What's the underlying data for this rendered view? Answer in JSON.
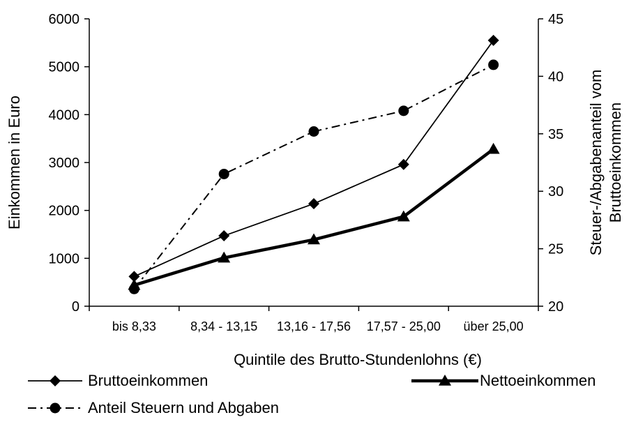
{
  "chart_data": {
    "type": "line",
    "title": "",
    "xlabel": "Quintile des Brutto-Stundenlohns (€)",
    "ylabel": "Einkommen in Euro",
    "ylabel_right": [
      "Steuer-/Abgabenanteil vom",
      "Bruttoeinkommen"
    ],
    "categories": [
      "bis 8,33",
      "8,34 - 13,15",
      "13,16 - 17,56",
      "17,57 - 25,00",
      "über 25,00"
    ],
    "ylim": [
      0,
      6000
    ],
    "yticks": [
      "0",
      "1000",
      "2000",
      "3000",
      "4000",
      "5000",
      "6000"
    ],
    "ylim_right": [
      20,
      45
    ],
    "yticks_right": [
      "20",
      "25",
      "30",
      "35",
      "40",
      "45"
    ],
    "grid": false,
    "legend_position": "bottom",
    "series": [
      {
        "name": "Bruttoeinkommen",
        "axis": "left",
        "values": [
          620,
          1470,
          2140,
          2960,
          5550
        ],
        "marker": "diamond",
        "line_style": "solid-thin",
        "color": "#000000"
      },
      {
        "name": "Nettoeinkommen",
        "axis": "left",
        "values": [
          440,
          1010,
          1390,
          1870,
          3280
        ],
        "marker": "triangle",
        "line_style": "solid-thick",
        "color": "#000000"
      },
      {
        "name": "Anteil Steuern und Abgaben",
        "axis": "right",
        "values": [
          21.5,
          31.5,
          35.2,
          37.0,
          41.0
        ],
        "marker": "circle",
        "line_style": "dash-dot",
        "color": "#000000"
      }
    ]
  }
}
